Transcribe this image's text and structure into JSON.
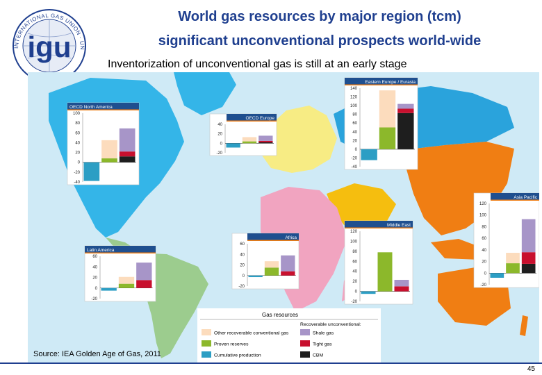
{
  "header": {
    "title_line1": "World gas resources by major region (tcm)",
    "title_line2": "significant unconventional prospects world-wide",
    "subtitle": "Inventorization of unconventional gas is still at an early stage",
    "logo_text": "INTERNATIONAL GAS UNION · UNION INTERNATIONALE DE L'INDUSTRIE DU GAZ",
    "logo_letters": "igu"
  },
  "footer": {
    "source": "Source: IEA Golden Age of Gas, 2011",
    "page_number": "45"
  },
  "colors": {
    "ocean": "#cfeaf6",
    "north_america": "#34b5e8",
    "latin_america": "#9ccc8e",
    "europe": "#f7ec84",
    "eastern_europe": "#2aa3dc",
    "africa": "#f1a4c0",
    "middle_east": "#f5be0f",
    "asia_pacific": "#f07e13",
    "other_conventional": "#fcdcbd",
    "proven_reserves": "#8cb82b",
    "cumulative_production": "#2c9ec4",
    "shale_gas": "#a795c8",
    "tight_gas": "#c8102e",
    "cbm": "#1e1e1e",
    "panel_header": "#1f4f8f",
    "panel_header_accent": "#f07e13"
  },
  "legend": {
    "title": "Gas resources",
    "unconventional_label": "Recoverable unconventional:",
    "items": [
      {
        "key": "other_conventional",
        "label": "Other recoverable conventional gas"
      },
      {
        "key": "shale_gas",
        "label": "Shale gas"
      },
      {
        "key": "proven_reserves",
        "label": "Proven reserves"
      },
      {
        "key": "tight_gas",
        "label": "Tight gas"
      },
      {
        "key": "cumulative_production",
        "label": "Cumulative production"
      },
      {
        "key": "cbm",
        "label": "CBM"
      }
    ]
  },
  "chart_data": [
    {
      "type": "bar",
      "region": "OECD North America",
      "ylim": [
        -40,
        100
      ],
      "yticks": [
        100,
        80,
        60,
        40,
        20,
        0,
        -20,
        -40
      ],
      "cumulative_production": -38,
      "proven_reserves": 8,
      "other_conventional": 37,
      "cbm": 12,
      "tight_gas": 10,
      "shale_gas": 47
    },
    {
      "type": "bar",
      "region": "OECD Europe",
      "ylim": [
        -20,
        40
      ],
      "yticks": [
        40,
        20,
        0,
        -20
      ],
      "cumulative_production": -9,
      "proven_reserves": 4,
      "other_conventional": 9,
      "cbm": 2,
      "tight_gas": 3,
      "shale_gas": 11
    },
    {
      "type": "bar",
      "region": "Eastern Europe / Eurasia",
      "ylim": [
        -40,
        140
      ],
      "yticks": [
        140,
        120,
        100,
        80,
        60,
        40,
        20,
        0,
        -20,
        -40
      ],
      "cumulative_production": -25,
      "proven_reserves": 50,
      "other_conventional": 85,
      "cbm": 83,
      "tight_gas": 10,
      "shale_gas": 11
    },
    {
      "type": "bar",
      "region": "Asia Pacific",
      "ylim": [
        -20,
        120
      ],
      "yticks": [
        120,
        100,
        80,
        60,
        40,
        20,
        0,
        -20
      ],
      "cumulative_production": -8,
      "proven_reserves": 17,
      "other_conventional": 18,
      "cbm": 16,
      "tight_gas": 20,
      "shale_gas": 57
    },
    {
      "type": "bar",
      "region": "Middle East",
      "ylim": [
        -20,
        120
      ],
      "yticks": [
        120,
        100,
        80,
        60,
        40,
        20,
        0,
        -20
      ],
      "cumulative_production": -5,
      "proven_reserves": 78,
      "other_conventional": 0,
      "cbm": 0,
      "tight_gas": 10,
      "shale_gas": 13
    },
    {
      "type": "bar",
      "region": "Africa",
      "ylim": [
        -20,
        60
      ],
      "yticks": [
        60,
        40,
        20,
        0,
        -20
      ],
      "cumulative_production": -3,
      "proven_reserves": 15,
      "other_conventional": 12,
      "cbm": 0,
      "tight_gas": 8,
      "shale_gas": 30
    },
    {
      "type": "bar",
      "region": "Latin America",
      "ylim": [
        -20,
        60
      ],
      "yticks": [
        60,
        40,
        20,
        0,
        -20
      ],
      "cumulative_production": -5,
      "proven_reserves": 8,
      "other_conventional": 13,
      "cbm": 0,
      "tight_gas": 15,
      "shale_gas": 33
    }
  ]
}
